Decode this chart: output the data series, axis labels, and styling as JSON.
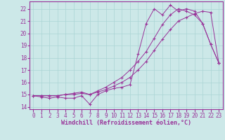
{
  "xlabel": "Windchill (Refroidissement éolien,°C)",
  "background_color": "#cce8e8",
  "grid_color": "#aad4d4",
  "line_color": "#993399",
  "spine_color": "#993399",
  "xlim": [
    -0.5,
    23.5
  ],
  "ylim": [
    13.8,
    22.6
  ],
  "xticks": [
    0,
    1,
    2,
    3,
    4,
    5,
    6,
    7,
    8,
    9,
    10,
    11,
    12,
    13,
    14,
    15,
    16,
    17,
    18,
    19,
    20,
    21,
    22,
    23
  ],
  "yticks": [
    14,
    15,
    16,
    17,
    18,
    19,
    20,
    21,
    22
  ],
  "line1_x": [
    0,
    1,
    2,
    3,
    4,
    5,
    6,
    7,
    8,
    9,
    10,
    11,
    12,
    13,
    14,
    15,
    16,
    17,
    18,
    19,
    20,
    21,
    22,
    23
  ],
  "line1_y": [
    14.9,
    14.8,
    14.7,
    14.8,
    14.7,
    14.7,
    14.9,
    14.2,
    15.0,
    15.3,
    15.5,
    15.6,
    15.8,
    18.3,
    20.8,
    22.0,
    21.5,
    22.3,
    21.8,
    22.0,
    21.8,
    20.8,
    19.1,
    17.6
  ],
  "line2_x": [
    0,
    1,
    2,
    3,
    4,
    5,
    6,
    7,
    8,
    9,
    10,
    11,
    12,
    13,
    14,
    15,
    16,
    17,
    18,
    19,
    20,
    21,
    22,
    23
  ],
  "line2_y": [
    14.9,
    14.9,
    14.9,
    14.9,
    15.0,
    15.0,
    15.1,
    15.0,
    15.2,
    15.4,
    15.7,
    16.0,
    16.4,
    17.0,
    17.7,
    18.6,
    19.5,
    20.3,
    21.0,
    21.3,
    21.6,
    21.8,
    21.7,
    17.6
  ],
  "line3_x": [
    0,
    1,
    2,
    3,
    4,
    5,
    6,
    7,
    8,
    9,
    10,
    11,
    12,
    13,
    14,
    15,
    16,
    17,
    18,
    19,
    20,
    21,
    22,
    23
  ],
  "line3_y": [
    14.9,
    14.9,
    14.9,
    14.9,
    15.0,
    15.1,
    15.2,
    15.0,
    15.3,
    15.6,
    16.0,
    16.4,
    17.0,
    17.7,
    18.5,
    19.6,
    20.7,
    21.5,
    22.0,
    21.8,
    21.5,
    20.8,
    19.1,
    17.6
  ],
  "tick_fontsize": 5.5,
  "xlabel_fontsize": 6.0
}
